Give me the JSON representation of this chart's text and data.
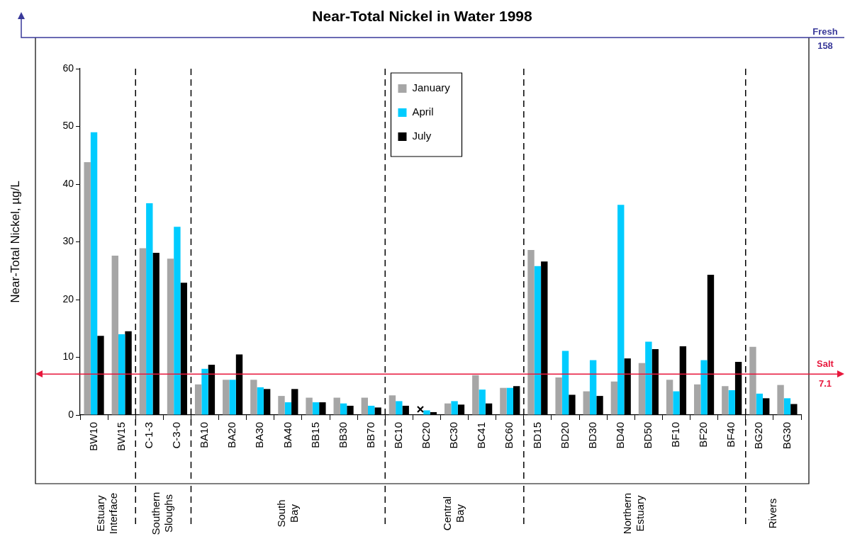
{
  "chart_data": {
    "type": "bar",
    "title": "Near-Total Nickel in Water 1998",
    "ylabel": "Near-Total Nickel, µg/L",
    "categories": [
      "BW10",
      "BW15",
      "C-1-3",
      "C-3-0",
      "BA10",
      "BA20",
      "BA30",
      "BA40",
      "BB15",
      "BB30",
      "BB70",
      "BC10",
      "BC20",
      "BC30",
      "BC41",
      "BC60",
      "BD15",
      "BD20",
      "BD30",
      "BD40",
      "BD50",
      "BF10",
      "BF20",
      "BF40",
      "BG20",
      "BG30"
    ],
    "series": [
      {
        "name": "January",
        "color": "#a6a6a6",
        "values": [
          43.8,
          27.6,
          28.9,
          27.1,
          5.3,
          6.1,
          6.1,
          3.3,
          3.0,
          3.0,
          3.0,
          3.4,
          null,
          2.0,
          6.9,
          4.7,
          28.6,
          6.5,
          4.1,
          5.8,
          9.0,
          6.1,
          5.3,
          5.0,
          11.8,
          5.2
        ]
      },
      {
        "name": "April",
        "color": "#00ccff",
        "values": [
          49.0,
          14.0,
          36.7,
          32.6,
          8.0,
          6.1,
          4.8,
          2.2,
          2.2,
          2.0,
          1.6,
          2.4,
          0.8,
          2.4,
          4.4,
          4.7,
          25.8,
          11.1,
          9.5,
          36.4,
          12.7,
          4.1,
          9.5,
          4.3,
          3.7,
          2.9
        ]
      },
      {
        "name": "July",
        "color": "#000000",
        "values": [
          13.7,
          14.5,
          28.1,
          22.9,
          8.7,
          10.5,
          4.5,
          4.5,
          2.2,
          1.6,
          1.3,
          1.6,
          0.5,
          1.8,
          2.0,
          5.0,
          26.6,
          3.5,
          3.3,
          9.8,
          11.4,
          11.9,
          24.3,
          9.2,
          2.9,
          1.9
        ]
      }
    ],
    "ylim": [
      0,
      60
    ],
    "yticks": [
      0,
      10,
      20,
      30,
      40,
      50,
      60
    ],
    "ref_lines": [
      {
        "axis": "y",
        "value": 7.1,
        "label": "Salt 7.1",
        "color": "#e8173c",
        "line_style": "solid"
      }
    ],
    "annotations": [
      "Estuary Interface",
      "Southern Sloughs",
      "South Bay",
      "Central Bay",
      "Northern Estuary",
      "Rivers",
      "Fresh",
      "158"
    ],
    "legend": "top"
  }
}
